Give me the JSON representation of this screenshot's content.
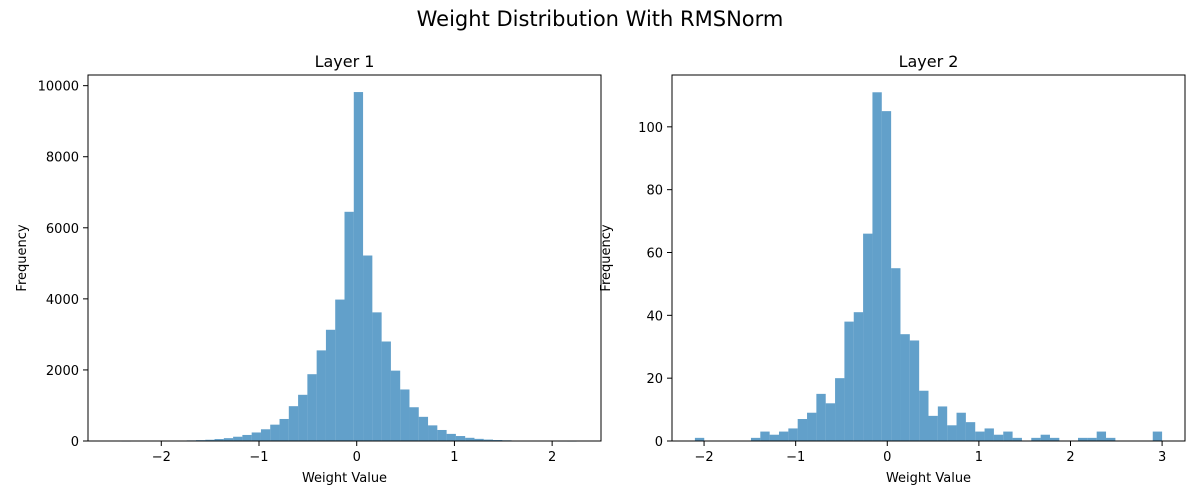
{
  "figure": {
    "title": "Weight Distribution With RMSNorm"
  },
  "chart_data": [
    {
      "type": "bar",
      "title": "Layer 1",
      "xlabel": "Weight Value",
      "ylabel": "Frequency",
      "xlim": [
        -2.75,
        2.5
      ],
      "ylim": [
        0,
        10300
      ],
      "xticks": [
        -2,
        -1,
        0,
        1,
        2
      ],
      "xtick_labels": [
        "−2",
        "−1",
        "0",
        "1",
        "2"
      ],
      "yticks": [
        0,
        2000,
        4000,
        6000,
        8000,
        10000
      ],
      "ytick_labels": [
        "0",
        "2000",
        "4000",
        "6000",
        "8000",
        "10000"
      ],
      "bar_color": "#1f77b4",
      "bar_alpha": 0.7,
      "bins": {
        "start": -2.5,
        "width": 0.095
      },
      "counts": [
        0,
        2,
        0,
        3,
        5,
        8,
        10,
        12,
        18,
        25,
        35,
        55,
        80,
        120,
        170,
        240,
        330,
        460,
        620,
        980,
        1300,
        1880,
        2550,
        3130,
        3980,
        6450,
        9820,
        5220,
        3620,
        2800,
        1980,
        1450,
        950,
        680,
        440,
        310,
        200,
        140,
        90,
        60,
        40,
        28,
        20,
        14,
        9,
        6,
        4,
        3,
        2,
        1
      ]
    },
    {
      "type": "bar",
      "title": "Layer 2",
      "xlabel": "Weight Value",
      "ylabel": "Frequency",
      "xlim": [
        -2.35,
        3.25
      ],
      "ylim": [
        0,
        116.5
      ],
      "xticks": [
        -2,
        -1,
        0,
        1,
        2,
        3
      ],
      "xtick_labels": [
        "−2",
        "−1",
        "0",
        "1",
        "2",
        "3"
      ],
      "yticks": [
        0,
        20,
        40,
        60,
        80,
        100
      ],
      "ytick_labels": [
        "0",
        "20",
        "40",
        "60",
        "80",
        "100"
      ],
      "bar_color": "#1f77b4",
      "bar_alpha": 0.7,
      "bins": {
        "start": -2.1,
        "width": 0.102
      },
      "counts": [
        1,
        0,
        0,
        0,
        0,
        0,
        1,
        3,
        2,
        3,
        4,
        7,
        9,
        15,
        12,
        20,
        38,
        41,
        66,
        111,
        105,
        55,
        34,
        32,
        16,
        8,
        11,
        5,
        9,
        6,
        3,
        4,
        2,
        3,
        1,
        0,
        1,
        2,
        1,
        0,
        0,
        1,
        1,
        3,
        1,
        0,
        0,
        0,
        0,
        3
      ]
    }
  ]
}
